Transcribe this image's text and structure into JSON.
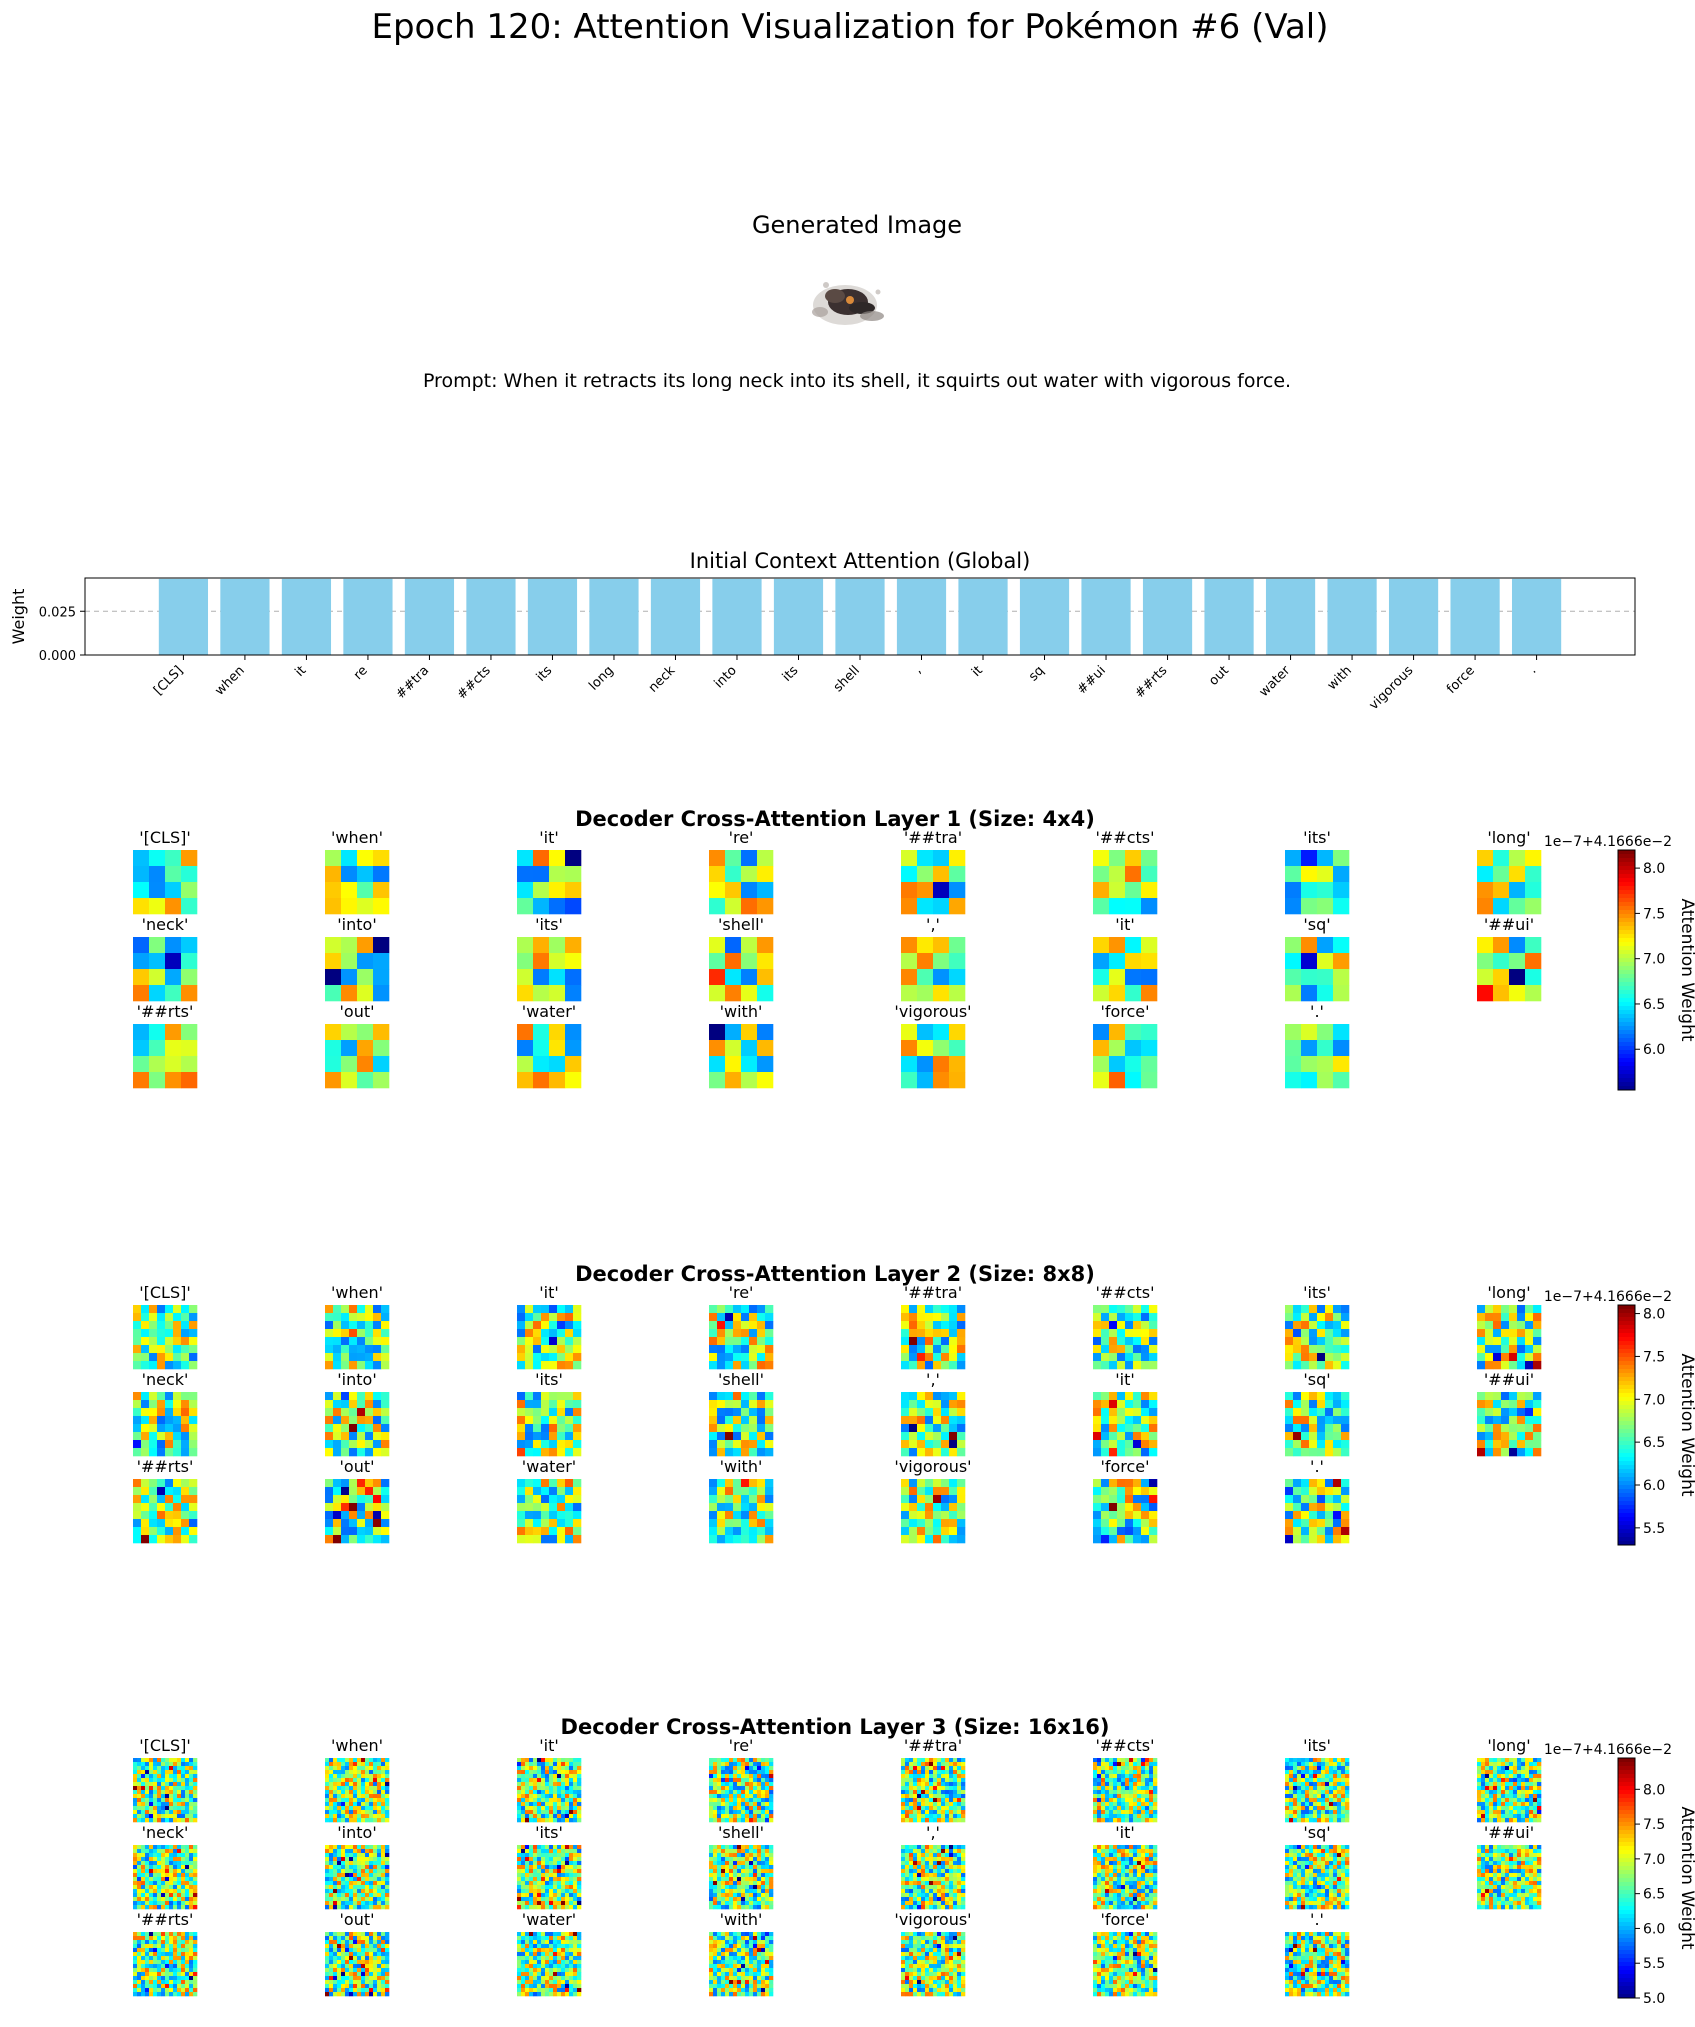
{
  "page": {
    "title": "Epoch 120: Attention Visualization for Pokémon #6 (Val)",
    "generated_title": "Generated Image",
    "prompt": "Prompt: When it retracts its long neck into its shell, it squirts out water with vigorous force."
  },
  "chart_data": [
    {
      "type": "bar",
      "title": "Initial Context Attention (Global)",
      "xlabel": "",
      "ylabel": "Weight",
      "categories": [
        "[CLS]",
        "when",
        "it",
        "re",
        "##tra",
        "##cts",
        "its",
        "long",
        "neck",
        "into",
        "its",
        "shell",
        ",",
        "it",
        "sq",
        "##ui",
        "##rts",
        "out",
        "water",
        "with",
        "vigorous",
        "force",
        "."
      ],
      "values": [
        0.0435,
        0.0435,
        0.0435,
        0.0435,
        0.0435,
        0.0435,
        0.0435,
        0.0435,
        0.0435,
        0.0435,
        0.0435,
        0.0435,
        0.0435,
        0.0435,
        0.0435,
        0.0435,
        0.0435,
        0.0435,
        0.0435,
        0.0435,
        0.0435,
        0.0435,
        0.0435
      ],
      "ylim": [
        0,
        0.044
      ],
      "yticks": [
        "0.000",
        "0.025"
      ],
      "grid": "horizontal dashed at 0.025",
      "color": "#87CEEB"
    },
    {
      "type": "heatmap",
      "title": "Decoder Cross-Attention Layer 1 (Size: 4x4)",
      "grid_size": 4,
      "tokens": [
        "'[CLS]'",
        "'when'",
        "'it'",
        "'re'",
        "'##tra'",
        "'##cts'",
        "'its'",
        "'long'",
        "'neck'",
        "'into'",
        "'its'",
        "'shell'",
        "','",
        "'it'",
        "'sq'",
        "'##ui'",
        "'##rts'",
        "'out'",
        "'water'",
        "'with'",
        "'vigorous'",
        "'force'",
        "'.'"
      ],
      "colorbar": {
        "label": "Attention Weight",
        "offset": "1e−7+4.1666e−2",
        "vmin": 5.55,
        "vmax": 8.2,
        "ticks": [
          "6.0",
          "6.5",
          "7.0",
          "7.5",
          "8.0"
        ]
      },
      "colormap": "jet"
    },
    {
      "type": "heatmap",
      "title": "Decoder Cross-Attention Layer 2 (Size: 8x8)",
      "grid_size": 8,
      "tokens": [
        "'[CLS]'",
        "'when'",
        "'it'",
        "'re'",
        "'##tra'",
        "'##cts'",
        "'its'",
        "'long'",
        "'neck'",
        "'into'",
        "'its'",
        "'shell'",
        "','",
        "'it'",
        "'sq'",
        "'##ui'",
        "'##rts'",
        "'out'",
        "'water'",
        "'with'",
        "'vigorous'",
        "'force'",
        "'.'"
      ],
      "colorbar": {
        "label": "Attention Weight",
        "offset": "1e−7+4.1666e−2",
        "vmin": 5.3,
        "vmax": 8.1,
        "ticks": [
          "5.5",
          "6.0",
          "6.5",
          "7.0",
          "7.5",
          "8.0"
        ]
      },
      "colormap": "jet"
    },
    {
      "type": "heatmap",
      "title": "Decoder Cross-Attention Layer 3 (Size: 16x16)",
      "grid_size": 16,
      "tokens": [
        "'[CLS]'",
        "'when'",
        "'it'",
        "'re'",
        "'##tra'",
        "'##cts'",
        "'its'",
        "'long'",
        "'neck'",
        "'into'",
        "'its'",
        "'shell'",
        "','",
        "'it'",
        "'sq'",
        "'##ui'",
        "'##rts'",
        "'out'",
        "'water'",
        "'with'",
        "'vigorous'",
        "'force'",
        "'.'"
      ],
      "colorbar": {
        "label": "Attention Weight",
        "offset": "1e−7+4.1666e−2",
        "vmin": 5.0,
        "vmax": 8.45,
        "ticks": [
          "5.0",
          "5.5",
          "6.0",
          "6.5",
          "7.0",
          "7.5",
          "8.0"
        ]
      },
      "colormap": "jet"
    }
  ]
}
